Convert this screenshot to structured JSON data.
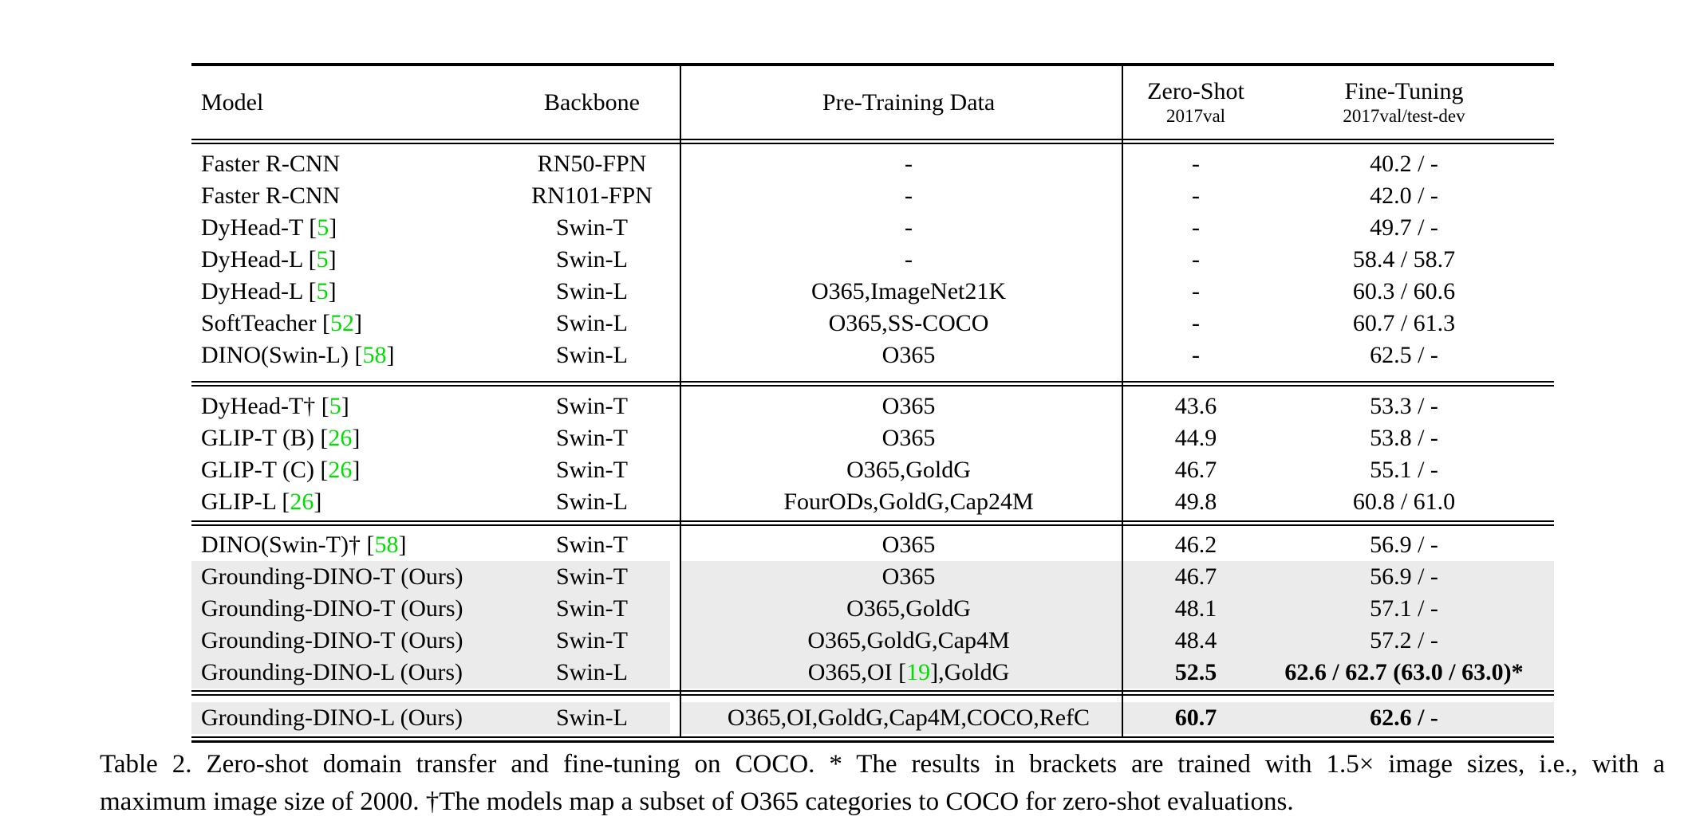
{
  "colors": {
    "row_shade": "#ebebeb",
    "citation_green": "#00dd00",
    "text": "#000000",
    "rule": "#000000"
  },
  "table": {
    "headers": {
      "model": "Model",
      "backbone": "Backbone",
      "pretrain": "Pre-Training Data",
      "zeroshot": {
        "main": "Zero-Shot",
        "sub": "2017val"
      },
      "finetune": {
        "main": "Fine-Tuning",
        "sub": "2017val/test-dev"
      }
    },
    "blocks": [
      {
        "rows": [
          {
            "model": "Faster R-CNN",
            "backbone": "RN50-FPN",
            "pretrain": "-",
            "zs": "-",
            "ft": "40.2 / -"
          },
          {
            "model": "Faster R-CNN",
            "backbone": "RN101-FPN",
            "pretrain": "-",
            "zs": "-",
            "ft": "42.0 / -"
          },
          {
            "model": [
              {
                "t": "DyHead-T ["
              },
              {
                "t": "5",
                "green": true
              },
              {
                "t": "]"
              }
            ],
            "backbone": "Swin-T",
            "pretrain": "-",
            "zs": "-",
            "ft": "49.7 / -"
          },
          {
            "model": [
              {
                "t": "DyHead-L ["
              },
              {
                "t": "5",
                "green": true
              },
              {
                "t": "]"
              }
            ],
            "backbone": "Swin-L",
            "pretrain": "-",
            "zs": "-",
            "ft": "58.4 / 58.7"
          },
          {
            "model": [
              {
                "t": "DyHead-L ["
              },
              {
                "t": "5",
                "green": true
              },
              {
                "t": "]"
              }
            ],
            "backbone": "Swin-L",
            "pretrain": "O365,ImageNet21K",
            "zs": "-",
            "ft": "60.3 / 60.6"
          },
          {
            "model": [
              {
                "t": "SoftTeacher ["
              },
              {
                "t": "52",
                "green": true
              },
              {
                "t": "]"
              }
            ],
            "backbone": "Swin-L",
            "pretrain": "O365,SS-COCO",
            "zs": "-",
            "ft": "60.7 / 61.3"
          },
          {
            "model": [
              {
                "t": "DINO(Swin-L) ["
              },
              {
                "t": "58",
                "green": true
              },
              {
                "t": "]"
              }
            ],
            "backbone": "Swin-L",
            "pretrain": "O365",
            "zs": "-",
            "ft": "62.5 / -"
          }
        ]
      },
      {
        "rows": [
          {
            "model": [
              {
                "t": "DyHead-T† ["
              },
              {
                "t": "5",
                "green": true
              },
              {
                "t": "]"
              }
            ],
            "backbone": "Swin-T",
            "pretrain": "O365",
            "zs": "43.6",
            "ft": "53.3 / -"
          },
          {
            "model": [
              {
                "t": "GLIP-T (B) ["
              },
              {
                "t": "26",
                "green": true
              },
              {
                "t": "]"
              }
            ],
            "backbone": "Swin-T",
            "pretrain": "O365",
            "zs": "44.9",
            "ft": "53.8 / -"
          },
          {
            "model": [
              {
                "t": "GLIP-T (C) ["
              },
              {
                "t": "26",
                "green": true
              },
              {
                "t": "]"
              }
            ],
            "backbone": "Swin-T",
            "pretrain": "O365,GoldG",
            "zs": "46.7",
            "ft": "55.1 / -"
          },
          {
            "model": [
              {
                "t": "GLIP-L ["
              },
              {
                "t": "26",
                "green": true
              },
              {
                "t": "]"
              }
            ],
            "backbone": "Swin-L",
            "pretrain": "FourODs,GoldG,Cap24M",
            "zs": "49.8",
            "ft": "60.8 / 61.0"
          }
        ]
      },
      {
        "rows": [
          {
            "model": [
              {
                "t": "DINO(Swin-T)† ["
              },
              {
                "t": "58",
                "green": true
              },
              {
                "t": "]"
              }
            ],
            "backbone": "Swin-T",
            "pretrain": "O365",
            "zs": "46.2",
            "ft": "56.9 / -"
          },
          {
            "model": "Grounding-DINO-T (Ours)",
            "backbone": "Swin-T",
            "pretrain": "O365",
            "zs": "46.7",
            "ft": "56.9 / -",
            "shaded": true
          },
          {
            "model": "Grounding-DINO-T (Ours)",
            "backbone": "Swin-T",
            "pretrain": "O365,GoldG",
            "zs": "48.1",
            "ft": "57.1 / -",
            "shaded": true
          },
          {
            "model": "Grounding-DINO-T (Ours)",
            "backbone": "Swin-T",
            "pretrain": "O365,GoldG,Cap4M",
            "zs": "48.4",
            "ft": "57.2 / -",
            "shaded": true
          },
          {
            "model": "Grounding-DINO-L (Ours)",
            "backbone": "Swin-L",
            "pretrain": [
              {
                "t": "O365,OI ["
              },
              {
                "t": "19",
                "green": true
              },
              {
                "t": "],GoldG"
              }
            ],
            "zs": "52.5",
            "ft": "62.6 / 62.7 (63.0 / 63.0)*",
            "shaded": true,
            "bold": true
          }
        ]
      },
      {
        "rows": [
          {
            "model": "Grounding-DINO-L (Ours)",
            "backbone": "Swin-L",
            "pretrain": "O365,OI,GoldG,Cap4M,COCO,RefC",
            "zs": "60.7",
            "ft": "62.6 / -",
            "shaded": true,
            "bold": true
          }
        ]
      }
    ]
  },
  "caption": {
    "line1": "Table 2.  Zero-shot domain transfer and fine-tuning on COCO. * The results in brackets are trained with 1.5× image sizes, i.e., with a",
    "line2": "maximum image size of 2000. †The models map a subset of O365 categories to COCO for zero-shot evaluations."
  }
}
